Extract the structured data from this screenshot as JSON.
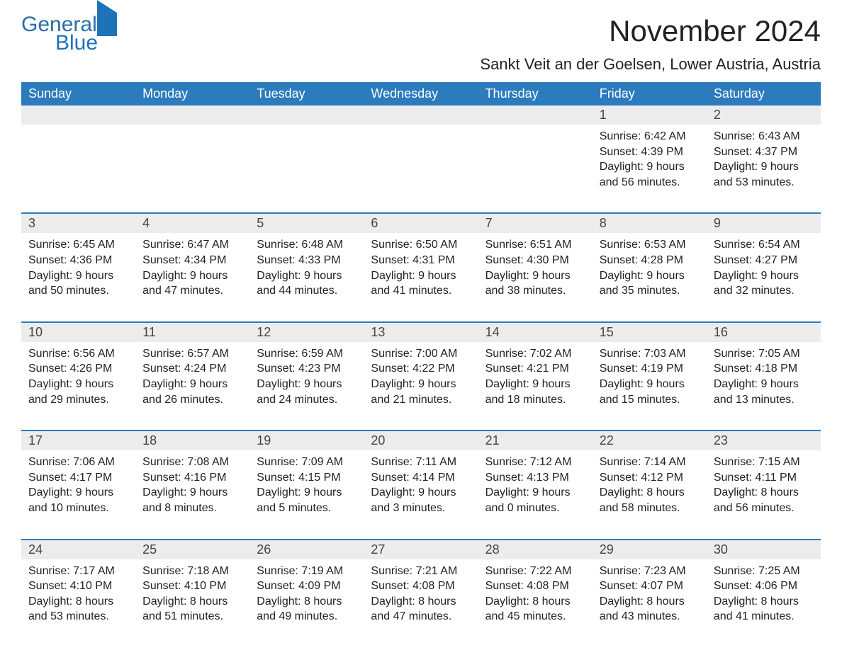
{
  "logo": {
    "word1": "General",
    "word2": "Blue"
  },
  "title": "November 2024",
  "location": "Sankt Veit an der Goelsen, Lower Austria, Austria",
  "colors": {
    "header_bg": "#2b7bbd",
    "header_text": "#ffffff",
    "daynum_bg": "#ececec",
    "week_divider": "#2b7bbd",
    "body_text": "#222222",
    "logo_color": "#1d72b8",
    "background": "#ffffff"
  },
  "typography": {
    "title_fontsize": 42,
    "location_fontsize": 22,
    "header_fontsize": 18,
    "daynum_fontsize": 18,
    "cell_fontsize": 16
  },
  "day_names": [
    "Sunday",
    "Monday",
    "Tuesday",
    "Wednesday",
    "Thursday",
    "Friday",
    "Saturday"
  ],
  "weeks": [
    [
      {
        "day": "",
        "sunrise": "",
        "sunset": "",
        "daylight1": "",
        "daylight2": ""
      },
      {
        "day": "",
        "sunrise": "",
        "sunset": "",
        "daylight1": "",
        "daylight2": ""
      },
      {
        "day": "",
        "sunrise": "",
        "sunset": "",
        "daylight1": "",
        "daylight2": ""
      },
      {
        "day": "",
        "sunrise": "",
        "sunset": "",
        "daylight1": "",
        "daylight2": ""
      },
      {
        "day": "",
        "sunrise": "",
        "sunset": "",
        "daylight1": "",
        "daylight2": ""
      },
      {
        "day": "1",
        "sunrise": "Sunrise: 6:42 AM",
        "sunset": "Sunset: 4:39 PM",
        "daylight1": "Daylight: 9 hours",
        "daylight2": "and 56 minutes."
      },
      {
        "day": "2",
        "sunrise": "Sunrise: 6:43 AM",
        "sunset": "Sunset: 4:37 PM",
        "daylight1": "Daylight: 9 hours",
        "daylight2": "and 53 minutes."
      }
    ],
    [
      {
        "day": "3",
        "sunrise": "Sunrise: 6:45 AM",
        "sunset": "Sunset: 4:36 PM",
        "daylight1": "Daylight: 9 hours",
        "daylight2": "and 50 minutes."
      },
      {
        "day": "4",
        "sunrise": "Sunrise: 6:47 AM",
        "sunset": "Sunset: 4:34 PM",
        "daylight1": "Daylight: 9 hours",
        "daylight2": "and 47 minutes."
      },
      {
        "day": "5",
        "sunrise": "Sunrise: 6:48 AM",
        "sunset": "Sunset: 4:33 PM",
        "daylight1": "Daylight: 9 hours",
        "daylight2": "and 44 minutes."
      },
      {
        "day": "6",
        "sunrise": "Sunrise: 6:50 AM",
        "sunset": "Sunset: 4:31 PM",
        "daylight1": "Daylight: 9 hours",
        "daylight2": "and 41 minutes."
      },
      {
        "day": "7",
        "sunrise": "Sunrise: 6:51 AM",
        "sunset": "Sunset: 4:30 PM",
        "daylight1": "Daylight: 9 hours",
        "daylight2": "and 38 minutes."
      },
      {
        "day": "8",
        "sunrise": "Sunrise: 6:53 AM",
        "sunset": "Sunset: 4:28 PM",
        "daylight1": "Daylight: 9 hours",
        "daylight2": "and 35 minutes."
      },
      {
        "day": "9",
        "sunrise": "Sunrise: 6:54 AM",
        "sunset": "Sunset: 4:27 PM",
        "daylight1": "Daylight: 9 hours",
        "daylight2": "and 32 minutes."
      }
    ],
    [
      {
        "day": "10",
        "sunrise": "Sunrise: 6:56 AM",
        "sunset": "Sunset: 4:26 PM",
        "daylight1": "Daylight: 9 hours",
        "daylight2": "and 29 minutes."
      },
      {
        "day": "11",
        "sunrise": "Sunrise: 6:57 AM",
        "sunset": "Sunset: 4:24 PM",
        "daylight1": "Daylight: 9 hours",
        "daylight2": "and 26 minutes."
      },
      {
        "day": "12",
        "sunrise": "Sunrise: 6:59 AM",
        "sunset": "Sunset: 4:23 PM",
        "daylight1": "Daylight: 9 hours",
        "daylight2": "and 24 minutes."
      },
      {
        "day": "13",
        "sunrise": "Sunrise: 7:00 AM",
        "sunset": "Sunset: 4:22 PM",
        "daylight1": "Daylight: 9 hours",
        "daylight2": "and 21 minutes."
      },
      {
        "day": "14",
        "sunrise": "Sunrise: 7:02 AM",
        "sunset": "Sunset: 4:21 PM",
        "daylight1": "Daylight: 9 hours",
        "daylight2": "and 18 minutes."
      },
      {
        "day": "15",
        "sunrise": "Sunrise: 7:03 AM",
        "sunset": "Sunset: 4:19 PM",
        "daylight1": "Daylight: 9 hours",
        "daylight2": "and 15 minutes."
      },
      {
        "day": "16",
        "sunrise": "Sunrise: 7:05 AM",
        "sunset": "Sunset: 4:18 PM",
        "daylight1": "Daylight: 9 hours",
        "daylight2": "and 13 minutes."
      }
    ],
    [
      {
        "day": "17",
        "sunrise": "Sunrise: 7:06 AM",
        "sunset": "Sunset: 4:17 PM",
        "daylight1": "Daylight: 9 hours",
        "daylight2": "and 10 minutes."
      },
      {
        "day": "18",
        "sunrise": "Sunrise: 7:08 AM",
        "sunset": "Sunset: 4:16 PM",
        "daylight1": "Daylight: 9 hours",
        "daylight2": "and 8 minutes."
      },
      {
        "day": "19",
        "sunrise": "Sunrise: 7:09 AM",
        "sunset": "Sunset: 4:15 PM",
        "daylight1": "Daylight: 9 hours",
        "daylight2": "and 5 minutes."
      },
      {
        "day": "20",
        "sunrise": "Sunrise: 7:11 AM",
        "sunset": "Sunset: 4:14 PM",
        "daylight1": "Daylight: 9 hours",
        "daylight2": "and 3 minutes."
      },
      {
        "day": "21",
        "sunrise": "Sunrise: 7:12 AM",
        "sunset": "Sunset: 4:13 PM",
        "daylight1": "Daylight: 9 hours",
        "daylight2": "and 0 minutes."
      },
      {
        "day": "22",
        "sunrise": "Sunrise: 7:14 AM",
        "sunset": "Sunset: 4:12 PM",
        "daylight1": "Daylight: 8 hours",
        "daylight2": "and 58 minutes."
      },
      {
        "day": "23",
        "sunrise": "Sunrise: 7:15 AM",
        "sunset": "Sunset: 4:11 PM",
        "daylight1": "Daylight: 8 hours",
        "daylight2": "and 56 minutes."
      }
    ],
    [
      {
        "day": "24",
        "sunrise": "Sunrise: 7:17 AM",
        "sunset": "Sunset: 4:10 PM",
        "daylight1": "Daylight: 8 hours",
        "daylight2": "and 53 minutes."
      },
      {
        "day": "25",
        "sunrise": "Sunrise: 7:18 AM",
        "sunset": "Sunset: 4:10 PM",
        "daylight1": "Daylight: 8 hours",
        "daylight2": "and 51 minutes."
      },
      {
        "day": "26",
        "sunrise": "Sunrise: 7:19 AM",
        "sunset": "Sunset: 4:09 PM",
        "daylight1": "Daylight: 8 hours",
        "daylight2": "and 49 minutes."
      },
      {
        "day": "27",
        "sunrise": "Sunrise: 7:21 AM",
        "sunset": "Sunset: 4:08 PM",
        "daylight1": "Daylight: 8 hours",
        "daylight2": "and 47 minutes."
      },
      {
        "day": "28",
        "sunrise": "Sunrise: 7:22 AM",
        "sunset": "Sunset: 4:08 PM",
        "daylight1": "Daylight: 8 hours",
        "daylight2": "and 45 minutes."
      },
      {
        "day": "29",
        "sunrise": "Sunrise: 7:23 AM",
        "sunset": "Sunset: 4:07 PM",
        "daylight1": "Daylight: 8 hours",
        "daylight2": "and 43 minutes."
      },
      {
        "day": "30",
        "sunrise": "Sunrise: 7:25 AM",
        "sunset": "Sunset: 4:06 PM",
        "daylight1": "Daylight: 8 hours",
        "daylight2": "and 41 minutes."
      }
    ]
  ]
}
